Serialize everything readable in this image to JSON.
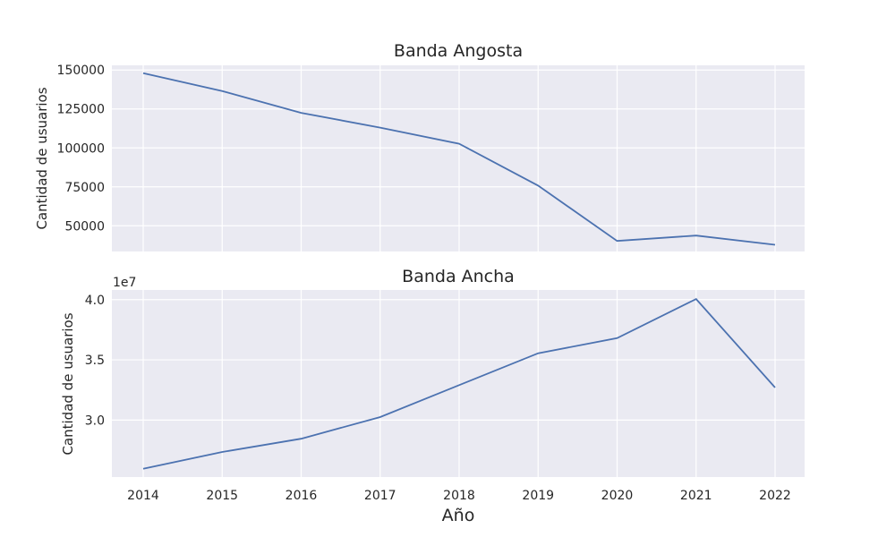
{
  "chart_data": [
    {
      "type": "line",
      "title": "Banda Angosta",
      "ylabel": "Cantidad de usuarios",
      "xlabel": "",
      "x": [
        "2014",
        "2015",
        "2016",
        "2017",
        "2018",
        "2019",
        "2020",
        "2021",
        "2022"
      ],
      "values": [
        148000,
        136500,
        122500,
        113000,
        102700,
        75800,
        40300,
        43700,
        37800
      ],
      "yticks": [
        "50000",
        "75000",
        "100000",
        "125000",
        "150000"
      ],
      "ylim": [
        33500,
        153000
      ],
      "grid": true,
      "line_color": "#4c72b0"
    },
    {
      "type": "line",
      "title": "Banda Ancha",
      "ylabel": "Cantidad de usuarios",
      "xlabel": "Año",
      "x": [
        "2014",
        "2015",
        "2016",
        "2017",
        "2018",
        "2019",
        "2020",
        "2021",
        "2022"
      ],
      "values": [
        25950000,
        27350000,
        28450000,
        30250000,
        32900000,
        35550000,
        36800000,
        40050000,
        32700000
      ],
      "offset_label": "1e7",
      "yticks": [
        "3.0",
        "3.5",
        "4.0"
      ],
      "ylim": [
        25270000,
        40800000
      ],
      "grid": true,
      "line_color": "#4c72b0"
    }
  ],
  "colors": {
    "axes_bg": "#eaeaf2",
    "grid": "#ffffff",
    "line": "#4c72b0"
  }
}
